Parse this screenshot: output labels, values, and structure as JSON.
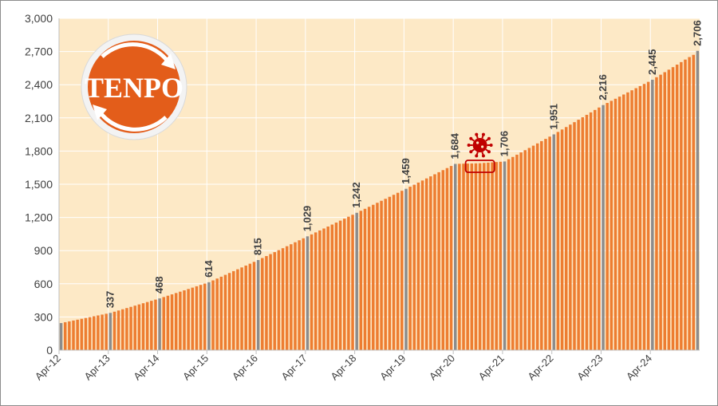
{
  "chart_data": {
    "type": "bar",
    "title": "",
    "xlabel": "",
    "ylabel": "",
    "ylim": [
      0,
      3000
    ],
    "y_ticks": [
      "0",
      "300",
      "600",
      "900",
      "1,200",
      "1,500",
      "1,800",
      "2,100",
      "2,400",
      "2,700",
      "3,000"
    ],
    "y_tick_values": [
      0,
      300,
      600,
      900,
      1200,
      1500,
      1800,
      2100,
      2400,
      2700,
      3000
    ],
    "grid": true,
    "start_month": "Apr-12",
    "x_tick_labels": [
      "Apr-12",
      "Apr-13",
      "Apr-14",
      "Apr-15",
      "Apr-16",
      "Apr-17",
      "Apr-18",
      "Apr-19",
      "Apr-20",
      "Apr-21",
      "Apr-22",
      "Apr-23",
      "Apr-24"
    ],
    "anchors": [
      {
        "month": "Apr-12",
        "value": 245
      },
      {
        "month": "Apr-13",
        "value": 337,
        "label": "337"
      },
      {
        "month": "Apr-14",
        "value": 468,
        "label": "468"
      },
      {
        "month": "Apr-15",
        "value": 614,
        "label": "614"
      },
      {
        "month": "Apr-16",
        "value": 815,
        "label": "815"
      },
      {
        "month": "Apr-17",
        "value": 1029,
        "label": "1,029"
      },
      {
        "month": "Apr-18",
        "value": 1242,
        "label": "1,242"
      },
      {
        "month": "Apr-19",
        "value": 1459,
        "label": "1,459"
      },
      {
        "month": "Apr-20",
        "value": 1684,
        "label": "1,684"
      },
      {
        "month": "Oct-20",
        "value": 1690
      },
      {
        "month": "Apr-21",
        "value": 1706,
        "label": "1,706"
      },
      {
        "month": "Apr-22",
        "value": 1951,
        "label": "1,951"
      },
      {
        "month": "Apr-23",
        "value": 2216,
        "label": "2,216"
      },
      {
        "month": "Apr-24",
        "value": 2445,
        "label": "2,445"
      },
      {
        "month": "Jan-25",
        "value": 2650
      },
      {
        "month": "Feb-25",
        "value": 2670
      },
      {
        "month": "Mar-25",
        "value": 2706,
        "label": "2,706"
      }
    ],
    "month_count": 156,
    "colors": {
      "bar": "#ed7d31",
      "bar_highlight": "#8c8c8c",
      "plot_background": "#fde9c6",
      "gridline": "#ffffff",
      "covid_marker": "#c00000",
      "logo": "#e35d1a"
    }
  },
  "logo": {
    "text": "TENPO"
  },
  "annotation": {
    "icon": "virus-icon"
  }
}
